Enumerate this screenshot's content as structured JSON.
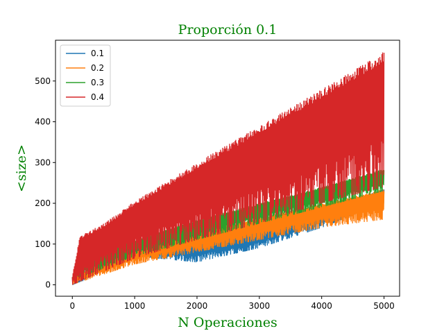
{
  "chart_data": {
    "type": "line",
    "title": "Proporción 0.1",
    "xlabel": "N Operaciones",
    "ylabel": "<size>",
    "label_color": "#008000",
    "xlim": [
      -270,
      5250
    ],
    "ylim": [
      -28,
      600
    ],
    "xticks": [
      0,
      1000,
      2000,
      3000,
      4000,
      5000
    ],
    "yticks": [
      0,
      100,
      200,
      300,
      400,
      500
    ],
    "grid": false,
    "legend_position": "top-left",
    "x_range": [
      0,
      5000
    ],
    "series": [
      {
        "name": "0.1",
        "color": "#1f77b4",
        "upper": [
          [
            0,
            0
          ],
          [
            1000,
            90
          ],
          [
            2000,
            105
          ],
          [
            3000,
            135
          ],
          [
            4000,
            185
          ],
          [
            5000,
            235
          ]
        ],
        "lower": [
          [
            0,
            0
          ],
          [
            1000,
            70
          ],
          [
            2000,
            55
          ],
          [
            3000,
            90
          ],
          [
            4000,
            140
          ],
          [
            5000,
            200
          ]
        ]
      },
      {
        "name": "0.2",
        "color": "#ff7f0e",
        "upper": [
          [
            0,
            20
          ],
          [
            1000,
            90
          ],
          [
            2000,
            130
          ],
          [
            3000,
            165
          ],
          [
            4000,
            200
          ],
          [
            5000,
            235
          ]
        ],
        "lower": [
          [
            0,
            0
          ],
          [
            1000,
            50
          ],
          [
            2000,
            80
          ],
          [
            3000,
            110
          ],
          [
            4000,
            140
          ],
          [
            5000,
            160
          ]
        ]
      },
      {
        "name": "0.3",
        "color": "#2ca02c",
        "upper": [
          [
            0,
            20
          ],
          [
            120,
            55
          ],
          [
            1000,
            110
          ],
          [
            2000,
            160
          ],
          [
            3000,
            200
          ],
          [
            4000,
            240
          ],
          [
            5000,
            285
          ]
        ],
        "lower": [
          [
            0,
            10
          ],
          [
            1000,
            70
          ],
          [
            2000,
            110
          ],
          [
            3000,
            150
          ],
          [
            4000,
            190
          ],
          [
            5000,
            230
          ]
        ]
      },
      {
        "name": "0.4",
        "color": "#d62728",
        "upper": [
          [
            0,
            20
          ],
          [
            120,
            120
          ],
          [
            500,
            150
          ],
          [
            1000,
            205
          ],
          [
            2000,
            300
          ],
          [
            3000,
            390
          ],
          [
            4000,
            480
          ],
          [
            5000,
            572
          ]
        ],
        "lower": [
          [
            0,
            0
          ],
          [
            1000,
            65
          ],
          [
            2000,
            110
          ],
          [
            3000,
            150
          ],
          [
            4000,
            200
          ],
          [
            5000,
            240
          ]
        ]
      }
    ]
  }
}
